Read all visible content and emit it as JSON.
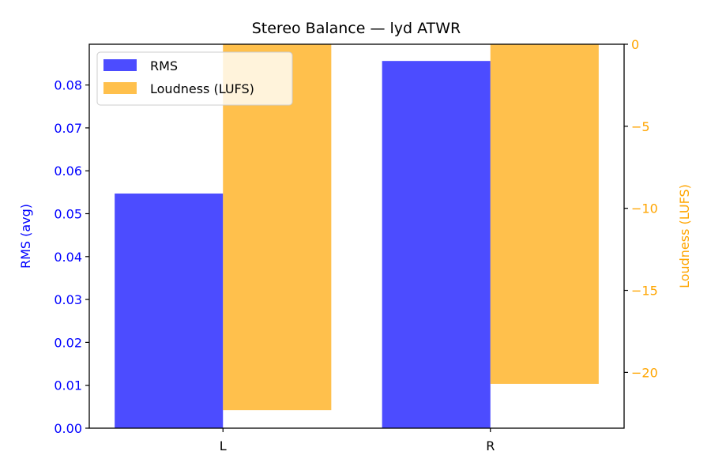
{
  "chart_data": {
    "type": "bar",
    "title": "Stereo Balance — lyd ATWR",
    "categories": [
      "L",
      "R"
    ],
    "xlabel": "",
    "series": [
      {
        "name": "RMS",
        "axis": "left",
        "color": "#0000ff",
        "values": [
          0.0547,
          0.0856
        ]
      },
      {
        "name": "Loudness (LUFS)",
        "axis": "right",
        "color": "#ffa500",
        "values": [
          -22.3,
          -20.7
        ]
      }
    ],
    "y_left": {
      "label": "RMS (avg)",
      "color": "#0000ff",
      "lim": [
        0,
        0.0895
      ],
      "ticks": [
        0.0,
        0.01,
        0.02,
        0.03,
        0.04,
        0.05,
        0.06,
        0.07,
        0.08
      ],
      "tick_labels": [
        "0.00",
        "0.01",
        "0.02",
        "0.03",
        "0.04",
        "0.05",
        "0.06",
        "0.07",
        "0.08"
      ]
    },
    "y_right": {
      "label": "Loudness (LUFS)",
      "color": "#ffa500",
      "lim": [
        -23.4,
        0
      ],
      "ticks": [
        0,
        -5,
        -10,
        -15,
        -20
      ],
      "tick_labels": [
        "0",
        "−5",
        "−10",
        "−15",
        "−20"
      ]
    },
    "legend": {
      "position": "top-left"
    },
    "grid": false
  }
}
